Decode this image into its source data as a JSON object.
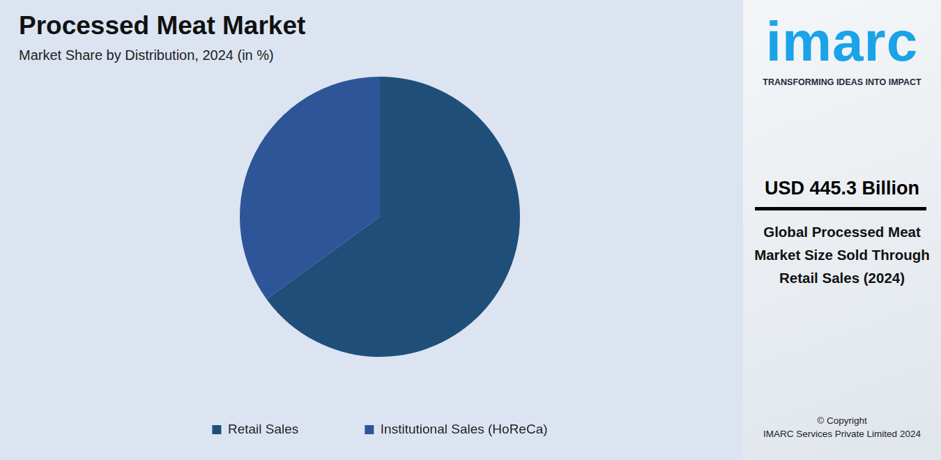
{
  "chart_data": {
    "type": "pie",
    "title": "Processed Meat Market",
    "subtitle": "Market Share by Distribution, 2024 (in %)",
    "categories": [
      "Retail Sales",
      "Institutional Sales (HoReCa)"
    ],
    "values": [
      65,
      35
    ],
    "colors": [
      "#1f4e79",
      "#2e5597"
    ],
    "legend": "bottom",
    "data_labels": false
  },
  "sidebar": {
    "logo": "imarc",
    "tagline": "TRANSFORMING IDEAS INTO IMPACT",
    "value": "USD 445.3 Billion",
    "caption": "Global Processed Meat Market Size Sold Through Retail Sales (2024)",
    "copyright": [
      "© Copyright",
      "IMARC Services Private Limited 2024"
    ]
  }
}
